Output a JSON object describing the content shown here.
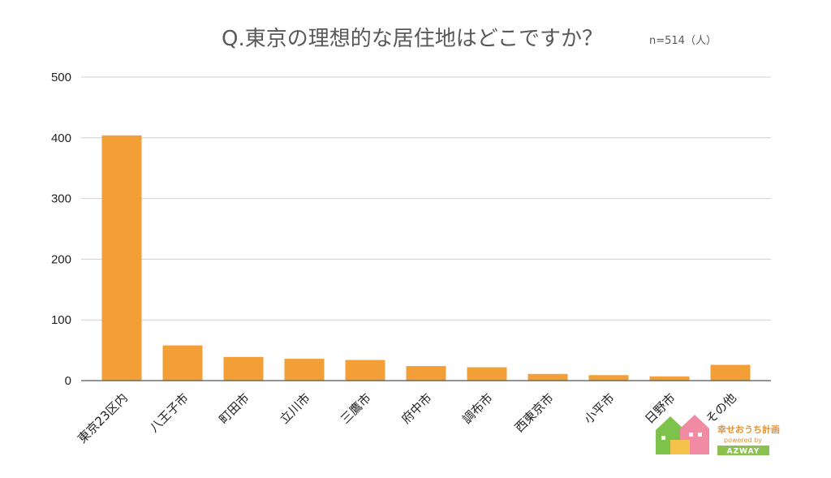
{
  "chart_data": {
    "type": "bar",
    "title": "Q.東京の理想的な居住地はどこですか？",
    "sample_note": "n=514（人）",
    "categories": [
      "東京23区内",
      "八王子市",
      "町田市",
      "立川市",
      "三鷹市",
      "府中市",
      "調布市",
      "西東京市",
      "小平市",
      "日野市",
      "その他"
    ],
    "values": [
      404,
      58,
      39,
      36,
      34,
      24,
      22,
      11,
      9,
      7,
      26
    ],
    "ylim": [
      0,
      500
    ],
    "yticks": [
      0,
      100,
      200,
      300,
      400,
      500
    ],
    "xlabel": "",
    "ylabel": "",
    "grid": true,
    "legend": "none",
    "bar_color": "#F19F36"
  },
  "logo": {
    "name": "幸せおうち計画",
    "sub": "powered by",
    "brand": "AZWAY",
    "house_colors": [
      "#7DC24B",
      "#F08BA3",
      "#F5C24C"
    ]
  }
}
